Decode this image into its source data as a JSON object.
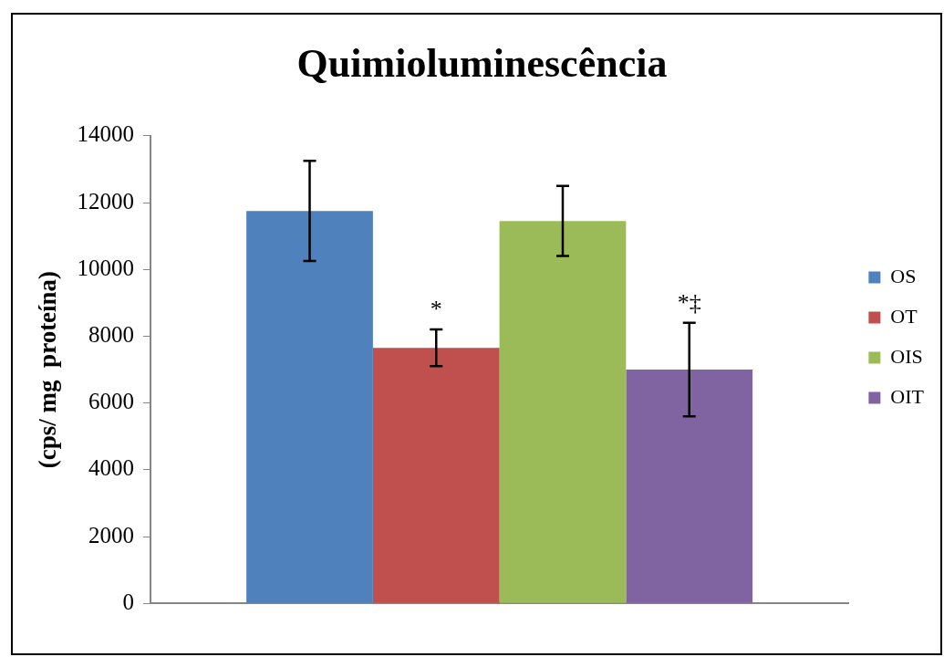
{
  "chart_data": {
    "type": "bar",
    "title": "Quimioluminescência",
    "ylabel": "(cps/ mg  proteína)",
    "categories": [
      null
    ],
    "series": [
      {
        "name": "OS",
        "color": "#4f81bd",
        "values": [
          11750
        ],
        "errors": [
          1500
        ]
      },
      {
        "name": "OT",
        "color": "#c0504d",
        "values": [
          7650
        ],
        "errors": [
          550
        ]
      },
      {
        "name": "OIS",
        "color": "#9bbb59",
        "values": [
          11450
        ],
        "errors": [
          1050
        ]
      },
      {
        "name": "OIT",
        "color": "#8064a2",
        "values": [
          7000
        ],
        "errors": [
          1400
        ]
      }
    ],
    "annotations": [
      "*",
      "*‡"
    ],
    "ylim": [
      0,
      14000
    ],
    "yticks": [
      0,
      2000,
      4000,
      6000,
      8000,
      10000,
      12000,
      14000
    ],
    "grid": false,
    "legend": "right"
  }
}
